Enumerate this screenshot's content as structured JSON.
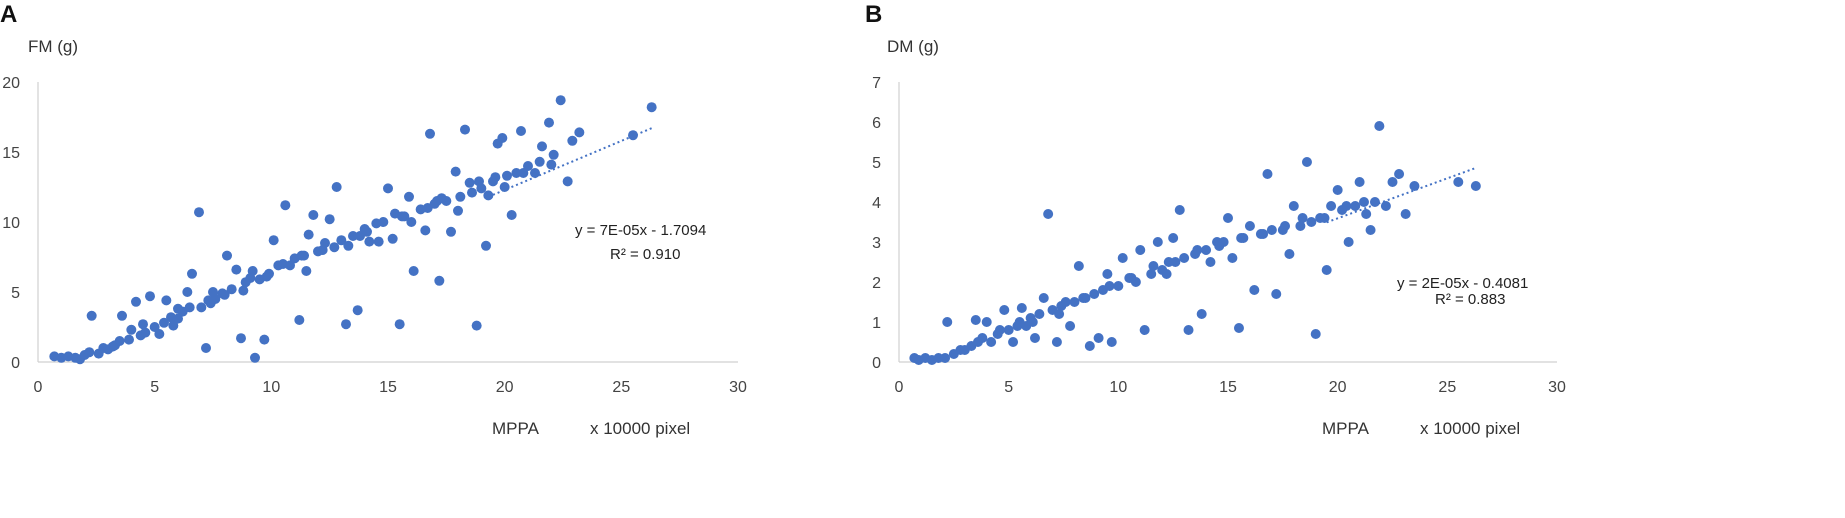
{
  "chart_data": [
    {
      "type": "scatter",
      "panel": "A",
      "ylabel": "FM (g)",
      "xlabel": "MPPA",
      "xunit": "x 10000 pixel",
      "xlim": [
        0,
        30
      ],
      "ylim": [
        0,
        20
      ],
      "xticks": [
        "0",
        "5",
        "10",
        "15",
        "20",
        "25",
        "30"
      ],
      "yticks": [
        "0",
        "5",
        "10",
        "15",
        "20"
      ],
      "trendline": {
        "slope": 0.7,
        "intercept": -1.7094,
        "x_range": [
          19.5,
          26.3
        ],
        "style": "dotted"
      },
      "equation": "y = 7E-05x - 1.7094",
      "r2": "R² = 0.910",
      "point_color": "#4472C4",
      "points": [
        [
          0.7,
          0.4
        ],
        [
          1.0,
          0.3
        ],
        [
          1.3,
          0.4
        ],
        [
          1.6,
          0.3
        ],
        [
          1.8,
          0.2
        ],
        [
          2.0,
          0.5
        ],
        [
          2.2,
          0.7
        ],
        [
          2.3,
          3.3
        ],
        [
          2.6,
          0.6
        ],
        [
          2.8,
          1.0
        ],
        [
          3.0,
          0.9
        ],
        [
          3.3,
          1.2
        ],
        [
          3.5,
          1.5
        ],
        [
          3.6,
          3.3
        ],
        [
          3.9,
          1.6
        ],
        [
          4.0,
          2.3
        ],
        [
          4.2,
          4.3
        ],
        [
          4.4,
          1.9
        ],
        [
          4.6,
          2.1
        ],
        [
          4.8,
          4.7
        ],
        [
          5.0,
          2.5
        ],
        [
          5.2,
          2.0
        ],
        [
          5.4,
          2.8
        ],
        [
          5.5,
          4.4
        ],
        [
          5.8,
          2.6
        ],
        [
          6.0,
          3.1
        ],
        [
          6.2,
          3.6
        ],
        [
          6.4,
          5.0
        ],
        [
          6.6,
          6.3
        ],
        [
          6.9,
          10.7
        ],
        [
          7.0,
          3.9
        ],
        [
          7.2,
          1.0
        ],
        [
          7.4,
          4.2
        ],
        [
          7.6,
          4.5
        ],
        [
          7.9,
          4.9
        ],
        [
          8.1,
          7.6
        ],
        [
          8.3,
          5.2
        ],
        [
          8.5,
          6.6
        ],
        [
          8.7,
          1.7
        ],
        [
          8.9,
          5.7
        ],
        [
          9.1,
          6.0
        ],
        [
          9.3,
          0.3
        ],
        [
          9.5,
          5.9
        ],
        [
          9.7,
          1.6
        ],
        [
          9.9,
          6.3
        ],
        [
          10.1,
          8.7
        ],
        [
          10.3,
          6.9
        ],
        [
          10.6,
          11.2
        ],
        [
          10.8,
          6.9
        ],
        [
          11.0,
          7.4
        ],
        [
          11.2,
          3.0
        ],
        [
          11.4,
          7.6
        ],
        [
          11.6,
          9.1
        ],
        [
          11.8,
          10.5
        ],
        [
          12.0,
          7.9
        ],
        [
          12.3,
          8.5
        ],
        [
          12.5,
          10.2
        ],
        [
          12.8,
          12.5
        ],
        [
          13.0,
          8.7
        ],
        [
          13.2,
          2.7
        ],
        [
          13.5,
          9.0
        ],
        [
          13.7,
          3.7
        ],
        [
          14.0,
          9.5
        ],
        [
          14.2,
          8.6
        ],
        [
          14.5,
          9.9
        ],
        [
          14.8,
          10.0
        ],
        [
          15.0,
          12.4
        ],
        [
          15.2,
          8.8
        ],
        [
          15.5,
          2.7
        ],
        [
          15.7,
          10.4
        ],
        [
          15.9,
          11.8
        ],
        [
          16.1,
          6.5
        ],
        [
          16.4,
          10.9
        ],
        [
          16.6,
          9.4
        ],
        [
          16.8,
          16.3
        ],
        [
          17.0,
          11.3
        ],
        [
          17.2,
          5.8
        ],
        [
          17.5,
          11.5
        ],
        [
          17.7,
          9.3
        ],
        [
          17.9,
          13.6
        ],
        [
          18.1,
          11.8
        ],
        [
          18.3,
          16.6
        ],
        [
          18.6,
          12.1
        ],
        [
          18.8,
          2.6
        ],
        [
          19.0,
          12.4
        ],
        [
          19.2,
          8.3
        ],
        [
          19.5,
          12.9
        ],
        [
          19.7,
          15.6
        ],
        [
          19.9,
          16.0
        ],
        [
          20.1,
          13.3
        ],
        [
          20.3,
          10.5
        ],
        [
          20.5,
          13.5
        ],
        [
          20.7,
          16.5
        ],
        [
          21.0,
          14.0
        ],
        [
          21.3,
          13.5
        ],
        [
          21.6,
          15.4
        ],
        [
          21.9,
          17.1
        ],
        [
          22.1,
          14.8
        ],
        [
          22.4,
          18.7
        ],
        [
          22.7,
          12.9
        ],
        [
          22.9,
          15.8
        ],
        [
          23.2,
          16.4
        ],
        [
          25.5,
          16.2
        ],
        [
          26.3,
          18.2
        ],
        [
          6.0,
          3.8
        ],
        [
          6.5,
          3.9
        ],
        [
          7.5,
          5.0
        ],
        [
          8.0,
          4.8
        ],
        [
          8.8,
          5.1
        ],
        [
          9.2,
          6.5
        ],
        [
          10.5,
          7.0
        ],
        [
          11.5,
          6.5
        ],
        [
          12.2,
          8.0
        ],
        [
          13.3,
          8.3
        ],
        [
          13.8,
          9.0
        ],
        [
          14.6,
          8.6
        ],
        [
          15.3,
          10.6
        ],
        [
          16.0,
          10.0
        ],
        [
          16.7,
          11.0
        ],
        [
          17.3,
          11.7
        ],
        [
          18.0,
          10.8
        ],
        [
          18.5,
          12.8
        ],
        [
          19.3,
          11.9
        ],
        [
          20.0,
          12.5
        ],
        [
          20.8,
          13.5
        ],
        [
          21.5,
          14.3
        ],
        [
          22.0,
          14.1
        ],
        [
          3.2,
          1.1
        ],
        [
          4.5,
          2.7
        ],
        [
          5.7,
          3.2
        ],
        [
          7.3,
          4.4
        ],
        [
          9.8,
          6.1
        ],
        [
          11.3,
          7.6
        ],
        [
          12.7,
          8.2
        ],
        [
          14.1,
          9.3
        ],
        [
          15.6,
          10.4
        ],
        [
          17.1,
          11.5
        ],
        [
          18.9,
          12.9
        ],
        [
          19.6,
          13.2
        ]
      ]
    },
    {
      "type": "scatter",
      "panel": "B",
      "ylabel": "DM (g)",
      "xlabel": "MPPA",
      "xunit": "x 10000 pixel",
      "xlim": [
        0,
        30
      ],
      "ylim": [
        0,
        7
      ],
      "xticks": [
        "0",
        "5",
        "10",
        "15",
        "20",
        "25",
        "30"
      ],
      "yticks": [
        "0",
        "1",
        "2",
        "3",
        "4",
        "5",
        "6",
        "7"
      ],
      "trendline": {
        "slope": 0.2,
        "intercept": -0.4081,
        "x_range": [
          19.5,
          26.3
        ],
        "style": "dotted"
      },
      "equation": "y = 2E-05x - 0.4081",
      "r2": "R² = 0.883",
      "point_color": "#4472C4",
      "points": [
        [
          0.7,
          0.1
        ],
        [
          0.9,
          0.05
        ],
        [
          1.2,
          0.1
        ],
        [
          1.5,
          0.05
        ],
        [
          1.8,
          0.1
        ],
        [
          2.1,
          0.1
        ],
        [
          2.2,
          1.0
        ],
        [
          2.5,
          0.2
        ],
        [
          2.8,
          0.3
        ],
        [
          3.0,
          0.3
        ],
        [
          3.3,
          0.4
        ],
        [
          3.5,
          1.05
        ],
        [
          3.8,
          0.6
        ],
        [
          4.0,
          1.0
        ],
        [
          4.2,
          0.5
        ],
        [
          4.5,
          0.7
        ],
        [
          4.8,
          1.3
        ],
        [
          5.0,
          0.8
        ],
        [
          5.2,
          0.5
        ],
        [
          5.4,
          0.9
        ],
        [
          5.6,
          1.35
        ],
        [
          5.8,
          0.9
        ],
        [
          6.0,
          1.1
        ],
        [
          6.2,
          0.6
        ],
        [
          6.4,
          1.2
        ],
        [
          6.6,
          1.6
        ],
        [
          6.8,
          3.7
        ],
        [
          7.0,
          1.3
        ],
        [
          7.2,
          0.5
        ],
        [
          7.4,
          1.4
        ],
        [
          7.6,
          1.5
        ],
        [
          7.8,
          0.9
        ],
        [
          8.0,
          1.5
        ],
        [
          8.2,
          2.4
        ],
        [
          8.5,
          1.6
        ],
        [
          8.7,
          0.4
        ],
        [
          8.9,
          1.7
        ],
        [
          9.1,
          0.6
        ],
        [
          9.3,
          1.8
        ],
        [
          9.5,
          2.2
        ],
        [
          9.7,
          0.5
        ],
        [
          10.0,
          1.9
        ],
        [
          10.2,
          2.6
        ],
        [
          10.5,
          2.1
        ],
        [
          10.8,
          2.0
        ],
        [
          11.0,
          2.8
        ],
        [
          11.2,
          0.8
        ],
        [
          11.5,
          2.2
        ],
        [
          11.8,
          3.0
        ],
        [
          12.0,
          2.3
        ],
        [
          12.3,
          2.5
        ],
        [
          12.5,
          3.1
        ],
        [
          12.8,
          3.8
        ],
        [
          13.0,
          2.6
        ],
        [
          13.2,
          0.8
        ],
        [
          13.5,
          2.7
        ],
        [
          13.8,
          1.2
        ],
        [
          14.0,
          2.8
        ],
        [
          14.2,
          2.5
        ],
        [
          14.5,
          3.0
        ],
        [
          14.8,
          3.0
        ],
        [
          15.0,
          3.6
        ],
        [
          15.2,
          2.6
        ],
        [
          15.5,
          0.85
        ],
        [
          15.7,
          3.1
        ],
        [
          16.0,
          3.4
        ],
        [
          16.2,
          1.8
        ],
        [
          16.5,
          3.2
        ],
        [
          16.8,
          4.7
        ],
        [
          17.0,
          3.3
        ],
        [
          17.2,
          1.7
        ],
        [
          17.5,
          3.3
        ],
        [
          17.8,
          2.7
        ],
        [
          18.0,
          3.9
        ],
        [
          18.3,
          3.4
        ],
        [
          18.6,
          5.0
        ],
        [
          18.8,
          3.5
        ],
        [
          19.0,
          0.7
        ],
        [
          19.2,
          3.6
        ],
        [
          19.5,
          2.3
        ],
        [
          19.7,
          3.9
        ],
        [
          20.0,
          4.3
        ],
        [
          20.2,
          3.8
        ],
        [
          20.5,
          3.0
        ],
        [
          20.8,
          3.9
        ],
        [
          21.0,
          4.5
        ],
        [
          21.3,
          3.7
        ],
        [
          21.5,
          3.3
        ],
        [
          21.7,
          4.0
        ],
        [
          21.9,
          5.9
        ],
        [
          22.2,
          3.9
        ],
        [
          22.5,
          4.5
        ],
        [
          22.8,
          4.7
        ],
        [
          23.1,
          3.7
        ],
        [
          23.5,
          4.4
        ],
        [
          25.5,
          4.5
        ],
        [
          26.3,
          4.4
        ],
        [
          6.1,
          1.0
        ],
        [
          7.3,
          1.2
        ],
        [
          8.4,
          1.6
        ],
        [
          9.6,
          1.9
        ],
        [
          10.6,
          2.1
        ],
        [
          11.6,
          2.4
        ],
        [
          12.6,
          2.5
        ],
        [
          13.6,
          2.8
        ],
        [
          14.6,
          2.9
        ],
        [
          15.6,
          3.1
        ],
        [
          16.6,
          3.2
        ],
        [
          17.6,
          3.4
        ],
        [
          18.4,
          3.6
        ],
        [
          19.4,
          3.6
        ],
        [
          20.4,
          3.9
        ],
        [
          21.2,
          4.0
        ],
        [
          3.6,
          0.5
        ],
        [
          4.6,
          0.8
        ],
        [
          5.5,
          1.0
        ],
        [
          12.2,
          2.2
        ]
      ]
    }
  ]
}
